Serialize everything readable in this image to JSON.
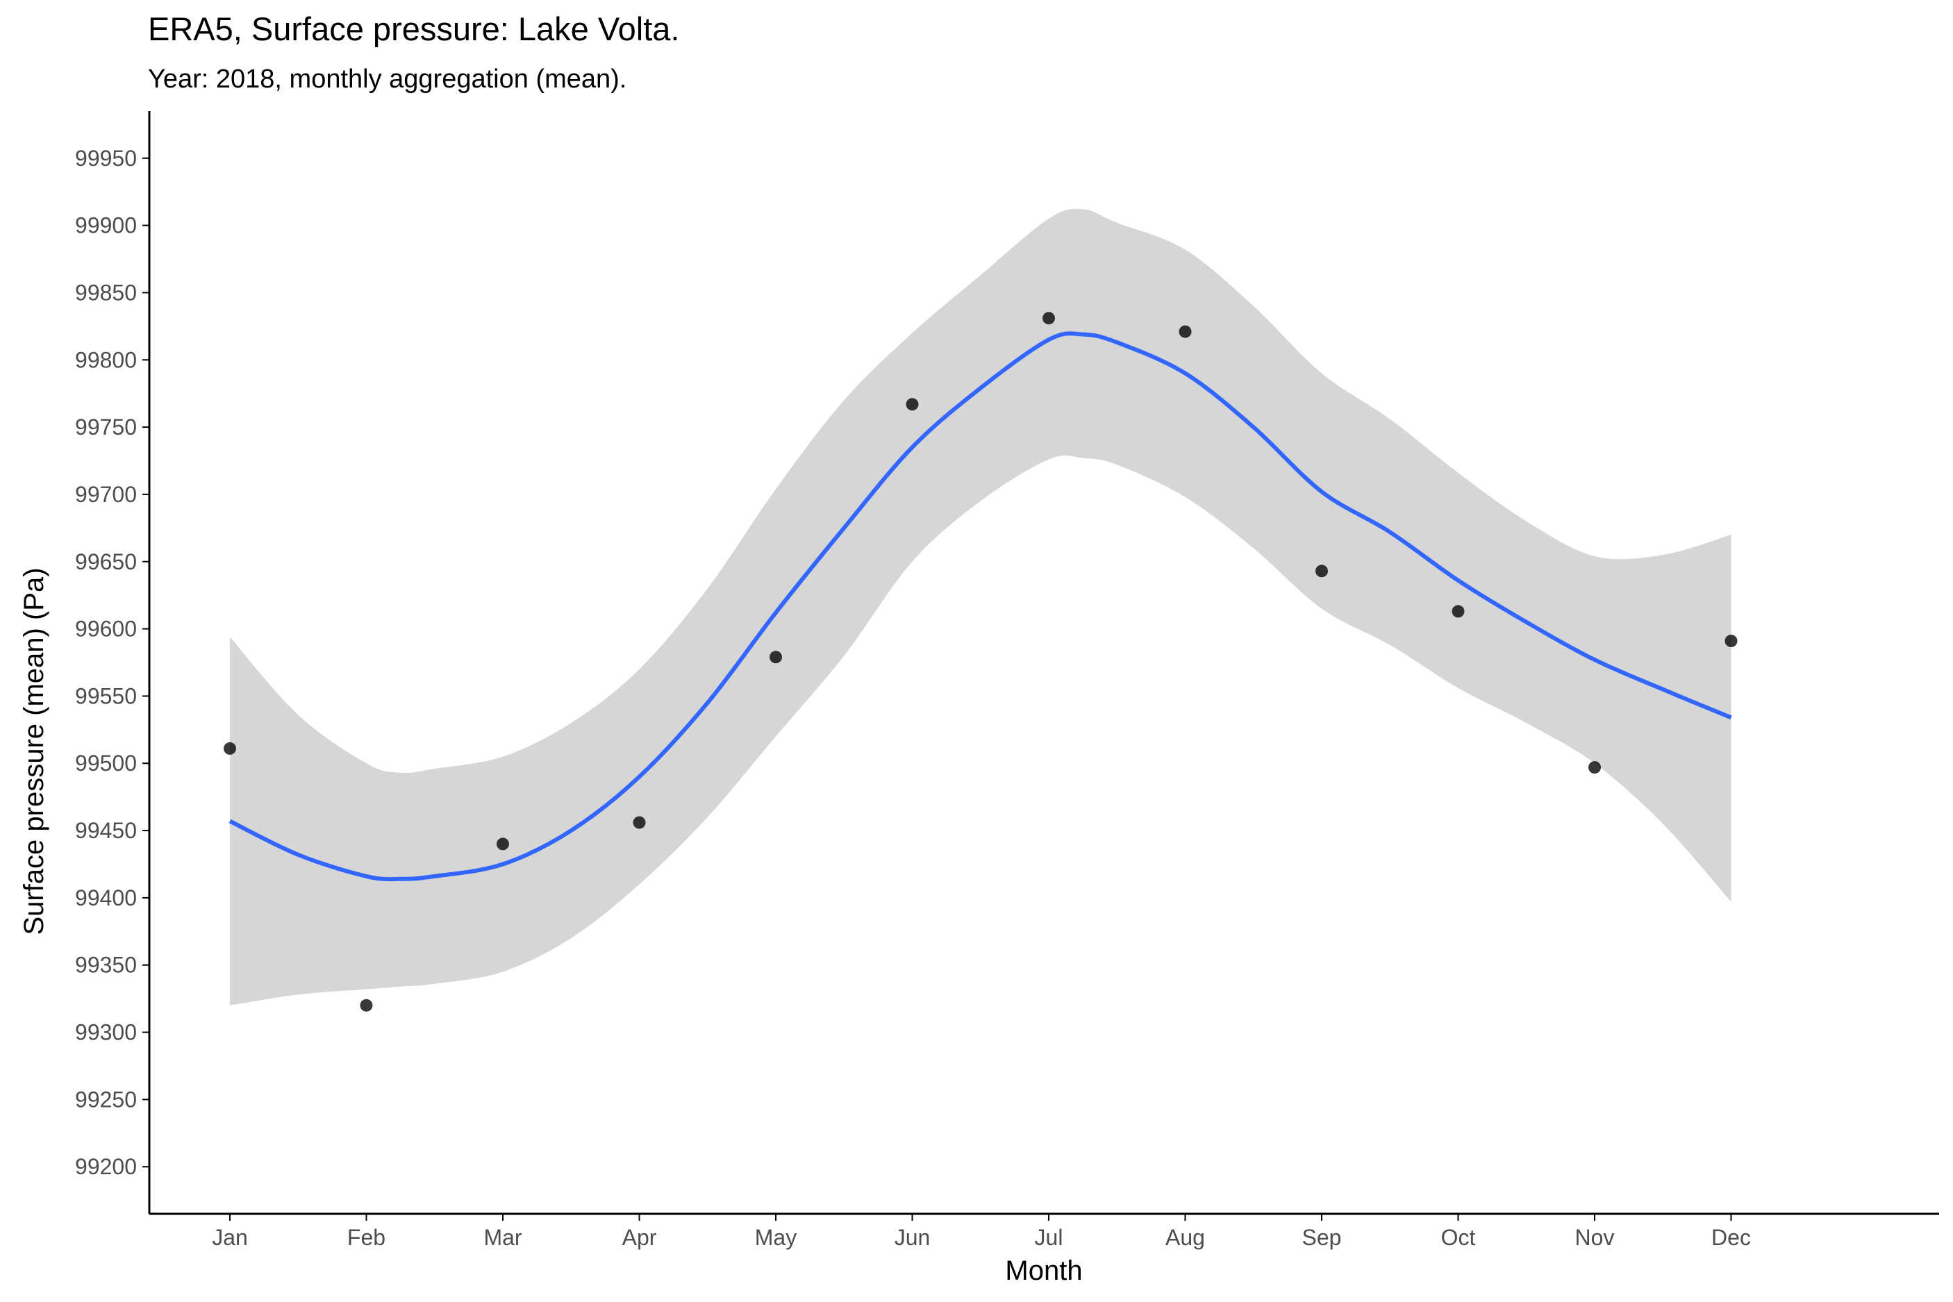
{
  "chart_data": {
    "type": "scatter",
    "title": "ERA5, Surface pressure: Lake Volta.",
    "subtitle": "Year: 2018, monthly aggregation (mean).",
    "xlabel": "Month",
    "ylabel": "Surface pressure (mean) (Pa)",
    "categories": [
      "Jan",
      "Feb",
      "Mar",
      "Apr",
      "May",
      "Jun",
      "Jul",
      "Aug",
      "Sep",
      "Oct",
      "Nov",
      "Dec"
    ],
    "yticks": [
      99200,
      99250,
      99300,
      99350,
      99400,
      99450,
      99500,
      99550,
      99600,
      99650,
      99700,
      99750,
      99800,
      99850,
      99900,
      99950
    ],
    "ylim": [
      99165,
      99985
    ],
    "grid": false,
    "legend": "none",
    "points": [
      {
        "x": "Jan",
        "y": 99511
      },
      {
        "x": "Feb",
        "y": 99320
      },
      {
        "x": "Mar",
        "y": 99440
      },
      {
        "x": "Apr",
        "y": 99456
      },
      {
        "x": "May",
        "y": 99579
      },
      {
        "x": "Jun",
        "y": 99767
      },
      {
        "x": "Jul",
        "y": 99831
      },
      {
        "x": "Aug",
        "y": 99821
      },
      {
        "x": "Sep",
        "y": 99643
      },
      {
        "x": "Oct",
        "y": 99613
      },
      {
        "x": "Nov",
        "y": 99497
      },
      {
        "x": "Dec",
        "y": 99591
      }
    ],
    "smooth": {
      "x": [
        1,
        1.5,
        2,
        2.25,
        2.5,
        3,
        3.5,
        4,
        4.5,
        5,
        5.5,
        6,
        6.5,
        7,
        7.25,
        7.5,
        8,
        8.5,
        9,
        9.5,
        10,
        10.5,
        11,
        11.5,
        12
      ],
      "y": [
        99457,
        99432,
        99416,
        99414,
        99416,
        99425,
        99450,
        99490,
        99545,
        99612,
        99675,
        99735,
        99779,
        99815,
        99819,
        99813,
        99790,
        99750,
        99702,
        99672,
        99636,
        99605,
        99577,
        99555,
        99534
      ],
      "lower": [
        99320,
        99328,
        99332,
        99334,
        99336,
        99345,
        99370,
        99410,
        99460,
        99520,
        99580,
        99650,
        99695,
        99726,
        99727,
        99722,
        99698,
        99660,
        99615,
        99588,
        99556,
        99530,
        99500,
        99455,
        99397
      ],
      "upper": [
        99594,
        99536,
        99500,
        99493,
        99496,
        99505,
        99530,
        99570,
        99630,
        99704,
        99770,
        99820,
        99863,
        99905,
        99912,
        99902,
        99882,
        99840,
        99790,
        99756,
        99716,
        99680,
        99654,
        99655,
        99670
      ]
    },
    "colors": {
      "line": "#3366ff",
      "ribbon": "#d6d6d6",
      "point": "#000000",
      "axis": "#000000",
      "tick_text": "#4d4d4d"
    }
  }
}
